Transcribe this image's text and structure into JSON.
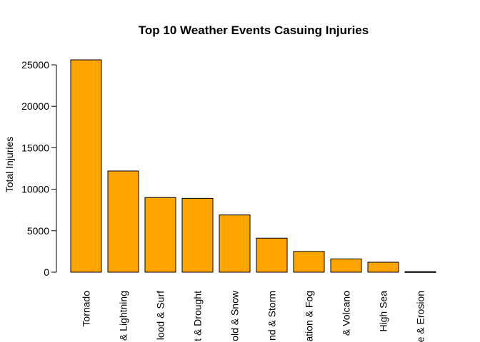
{
  "chart_data": {
    "type": "bar",
    "title": "Top 10 Weather Events Casuing Injuries",
    "xlabel": "",
    "ylabel": "Total Injuries",
    "categories": [
      "Tornado",
      "& Lightning",
      "lood & Surf",
      "t & Drought",
      "old & Snow",
      "nd & Storm",
      "ation & Fog",
      "& Volcano",
      "High Sea",
      "e & Erosion"
    ],
    "values": [
      25600,
      12200,
      9000,
      8900,
      6900,
      4100,
      2500,
      1600,
      1200,
      60
    ],
    "ylim": [
      0,
      25000
    ],
    "yticks": [
      0,
      5000,
      10000,
      15000,
      20000,
      25000
    ],
    "bar_color": "#FFA500",
    "grid": false
  }
}
